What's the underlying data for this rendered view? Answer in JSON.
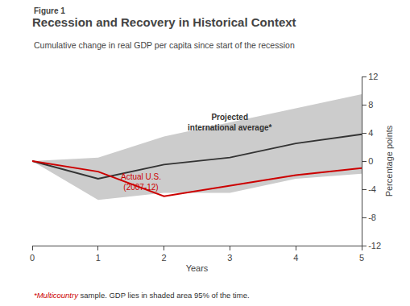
{
  "chart_data": {
    "type": "line",
    "figure_label": "Figure 1",
    "title": "Recession and Recovery in Historical Context",
    "subtitle": "Cumulative change in real GDP per capita since start of the recession",
    "xlabel": "Years",
    "ylabel": "Percentage points",
    "x": [
      0,
      1,
      2,
      3,
      4,
      5
    ],
    "series": [
      {
        "type": "band",
        "color": "#cccccc",
        "upper": [
          0,
          0.5,
          3.5,
          5.5,
          7.5,
          9.5
        ],
        "lower": [
          0,
          -5.5,
          -4.5,
          -4.5,
          -2.5,
          -1.8
        ]
      },
      {
        "color": "#333333",
        "values": [
          0,
          -2.5,
          -0.5,
          0.5,
          2.5,
          3.8
        ]
      },
      {
        "color": "#cc0000",
        "values": [
          0,
          -1.5,
          -5.0,
          -3.5,
          -2.0,
          -1.0
        ]
      }
    ],
    "annotations": [
      {
        "text": "Projected\ninternational average*",
        "color": "#333333"
      },
      {
        "text": "Actual U.S.\n(2007-12)",
        "color": "#cc0000"
      }
    ],
    "footnote": [
      {
        "text": "*Multicountry",
        "color": "#cc0000"
      },
      {
        "text": " sample. GDP lies in shaded area 95% of the time.",
        "color": "#333333"
      }
    ],
    "xlim": [
      0,
      5
    ],
    "ylim": [
      -12,
      12
    ],
    "xticks": [
      0,
      1,
      2,
      3,
      4,
      5
    ],
    "yticks": [
      -12,
      -8,
      -4,
      0,
      4,
      8,
      12
    ],
    "grid": false
  }
}
